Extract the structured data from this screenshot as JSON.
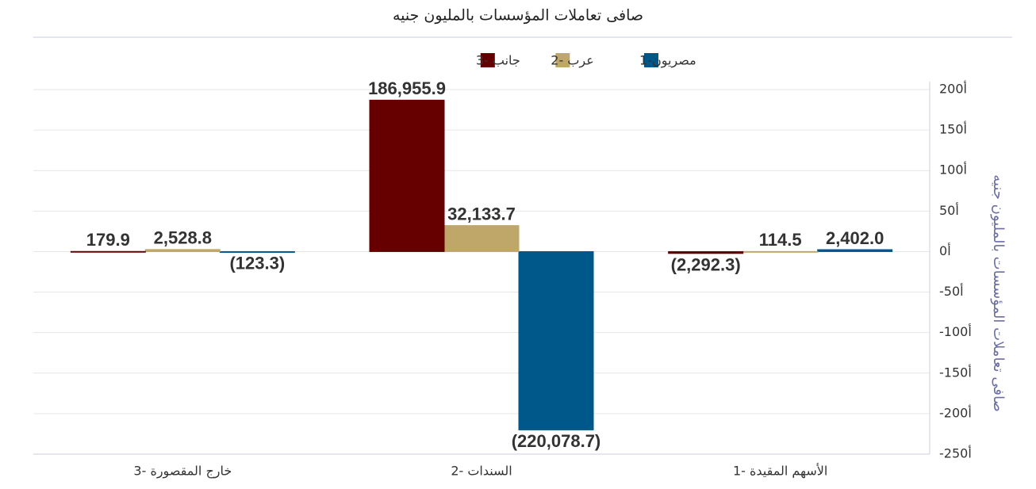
{
  "chart_data": {
    "type": "bar",
    "title": "صافى تعاملات المؤسسات بالمليون جنيه",
    "y_axis_label": "صافى تعاملات المؤسسات بالمليون جنيه",
    "categories": [
      "الأسهم المقيدة -1",
      "السندات -2",
      "خارج المقصورة -3"
    ],
    "series": [
      {
        "name": "مصريون-1",
        "color": "#00578a",
        "values": [
          2402.0,
          -220078.7,
          -123.3
        ],
        "value_labels": [
          "2,402.0",
          "(220,078.7)",
          "(123.3)"
        ]
      },
      {
        "name": "عرب -2",
        "color": "#bfa76a",
        "values": [
          114.5,
          32133.7,
          2528.8
        ],
        "value_labels": [
          "114.5",
          "32,133.7",
          "2,528.8"
        ]
      },
      {
        "name": "جانب -3",
        "color": "#660000",
        "values": [
          -2292.3,
          186955.9,
          179.9
        ],
        "value_labels": [
          "(2,292.3)",
          "186,955.9",
          "179.9"
        ]
      }
    ],
    "ylim": [
      -250000,
      200000
    ],
    "yticks": [
      {
        "value": -250000,
        "label": "-250أ"
      },
      {
        "value": -200000,
        "label": "-200أ"
      },
      {
        "value": -150000,
        "label": "-150أ"
      },
      {
        "value": -100000,
        "label": "-100أ"
      },
      {
        "value": -50000,
        "label": "-50أ"
      },
      {
        "value": 0,
        "label": "0أ"
      },
      {
        "value": 50000,
        "label": "50أ"
      },
      {
        "value": 100000,
        "label": "100أ"
      },
      {
        "value": 150000,
        "label": "150أ"
      },
      {
        "value": 200000,
        "label": "200أ"
      }
    ],
    "grid": true,
    "direction": "rtl",
    "legend": "top"
  }
}
